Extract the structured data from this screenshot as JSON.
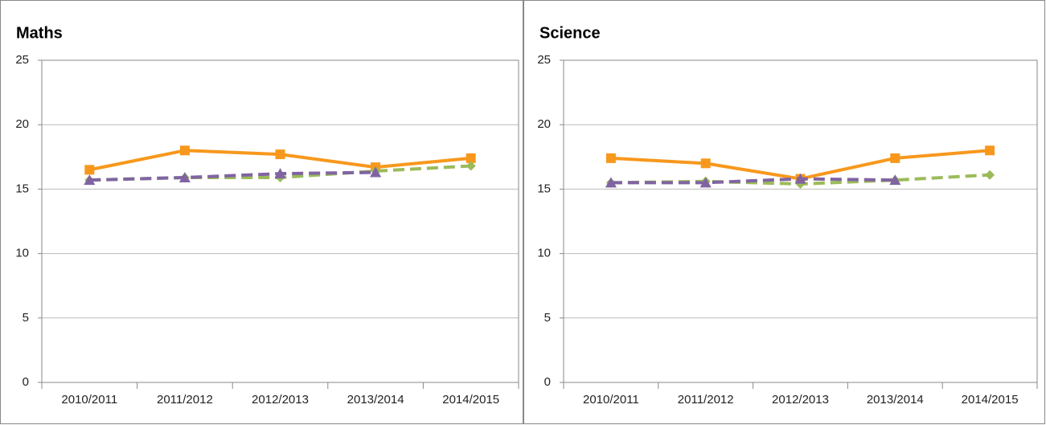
{
  "chart_data": [
    {
      "type": "line",
      "title": "Maths",
      "categories": [
        "2010/2011",
        "2011/2012",
        "2012/2013",
        "2013/2014",
        "2014/2015"
      ],
      "series": [
        {
          "color": "#f7981d",
          "marker": "square",
          "dash": false,
          "values": [
            16.5,
            18.0,
            17.7,
            16.7,
            17.4
          ]
        },
        {
          "color": "#9bbb59",
          "marker": "diamond",
          "dash": true,
          "values": [
            15.7,
            15.9,
            15.9,
            16.4,
            16.8
          ]
        },
        {
          "color": "#8064a2",
          "marker": "triangle",
          "dash": true,
          "values": [
            15.7,
            15.9,
            16.2,
            16.3,
            null
          ]
        }
      ],
      "ylim": [
        0,
        25
      ],
      "yticks": [
        0,
        5,
        10,
        15,
        20,
        25
      ],
      "grid": true
    },
    {
      "type": "line",
      "title": "Science",
      "categories": [
        "2010/2011",
        "2011/2012",
        "2012/2013",
        "2013/2014",
        "2014/2015"
      ],
      "series": [
        {
          "color": "#f7981d",
          "marker": "square",
          "dash": false,
          "values": [
            17.4,
            17.0,
            15.8,
            17.4,
            18.0
          ]
        },
        {
          "color": "#9bbb59",
          "marker": "diamond",
          "dash": true,
          "values": [
            15.5,
            15.6,
            15.4,
            15.7,
            16.1
          ]
        },
        {
          "color": "#8064a2",
          "marker": "triangle",
          "dash": true,
          "values": [
            15.5,
            15.5,
            15.8,
            15.7,
            null
          ]
        }
      ],
      "ylim": [
        0,
        25
      ],
      "yticks": [
        0,
        5,
        10,
        15,
        20,
        25
      ],
      "grid": true
    }
  ]
}
